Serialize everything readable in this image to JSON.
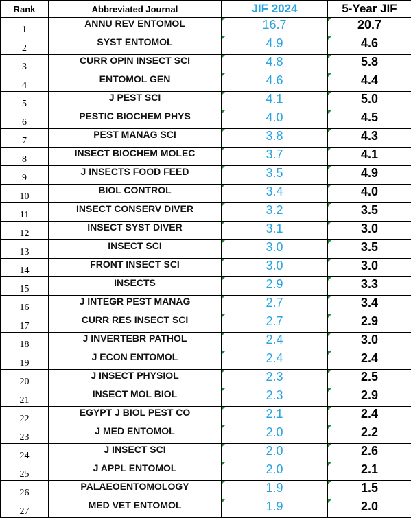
{
  "headers": {
    "rank": "Rank",
    "journal": "Abbreviated Journal",
    "jif": "JIF 2024",
    "five_year": "5-Year JIF"
  },
  "colors": {
    "jif_blue": "#2aa4e0",
    "error_indicator_green": "#1e8f3a",
    "grid_border": "#000000"
  },
  "rows": [
    {
      "rank": "1",
      "journal": "ANNU REV ENTOMOL",
      "jif": "16.7",
      "five": "20.7"
    },
    {
      "rank": "2",
      "journal": "SYST ENTOMOL",
      "jif": "4.9",
      "five": "4.6"
    },
    {
      "rank": "3",
      "journal": "CURR OPIN INSECT SCI",
      "jif": "4.8",
      "five": "5.8"
    },
    {
      "rank": "4",
      "journal": "ENTOMOL GEN",
      "jif": "4.6",
      "five": "4.4"
    },
    {
      "rank": "5",
      "journal": "J PEST SCI",
      "jif": "4.1",
      "five": "5.0"
    },
    {
      "rank": "6",
      "journal": "PESTIC BIOCHEM PHYS",
      "jif": "4.0",
      "five": "4.5"
    },
    {
      "rank": "7",
      "journal": "PEST MANAG SCI",
      "jif": "3.8",
      "five": "4.3"
    },
    {
      "rank": "8",
      "journal": "INSECT BIOCHEM MOLEC",
      "jif": "3.7",
      "five": "4.1"
    },
    {
      "rank": "9",
      "journal": "J INSECTS FOOD FEED",
      "jif": "3.5",
      "five": "4.9"
    },
    {
      "rank": "10",
      "journal": "BIOL CONTROL",
      "jif": "3.4",
      "five": "4.0"
    },
    {
      "rank": "11",
      "journal": "INSECT CONSERV DIVER",
      "jif": "3.2",
      "five": "3.5"
    },
    {
      "rank": "12",
      "journal": "INSECT SYST DIVER",
      "jif": "3.1",
      "five": "3.0"
    },
    {
      "rank": "13",
      "journal": "INSECT SCI",
      "jif": "3.0",
      "five": "3.5"
    },
    {
      "rank": "14",
      "journal": "FRONT INSECT SCI",
      "jif": "3.0",
      "five": "3.0"
    },
    {
      "rank": "15",
      "journal": "INSECTS",
      "jif": "2.9",
      "five": "3.3"
    },
    {
      "rank": "16",
      "journal": "J INTEGR PEST MANAG",
      "jif": "2.7",
      "five": "3.4"
    },
    {
      "rank": "17",
      "journal": "CURR RES INSECT SCI",
      "jif": "2.7",
      "five": "2.9"
    },
    {
      "rank": "18",
      "journal": "J INVERTEBR PATHOL",
      "jif": "2.4",
      "five": "3.0"
    },
    {
      "rank": "19",
      "journal": "J ECON ENTOMOL",
      "jif": "2.4",
      "five": "2.4"
    },
    {
      "rank": "20",
      "journal": "J INSECT PHYSIOL",
      "jif": "2.3",
      "five": "2.5"
    },
    {
      "rank": "21",
      "journal": "INSECT MOL BIOL",
      "jif": "2.3",
      "five": "2.9"
    },
    {
      "rank": "22",
      "journal": "EGYPT J BIOL PEST CO",
      "jif": "2.1",
      "five": "2.4"
    },
    {
      "rank": "23",
      "journal": "J MED ENTOMOL",
      "jif": "2.0",
      "five": "2.2"
    },
    {
      "rank": "24",
      "journal": "J INSECT SCI",
      "jif": "2.0",
      "five": "2.6"
    },
    {
      "rank": "25",
      "journal": "J APPL ENTOMOL",
      "jif": "2.0",
      "five": "2.1"
    },
    {
      "rank": "26",
      "journal": "PALAEOENTOMOLOGY",
      "jif": "1.9",
      "five": "1.5"
    },
    {
      "rank": "27",
      "journal": "MED VET ENTOMOL",
      "jif": "1.9",
      "five": "2.0"
    }
  ]
}
